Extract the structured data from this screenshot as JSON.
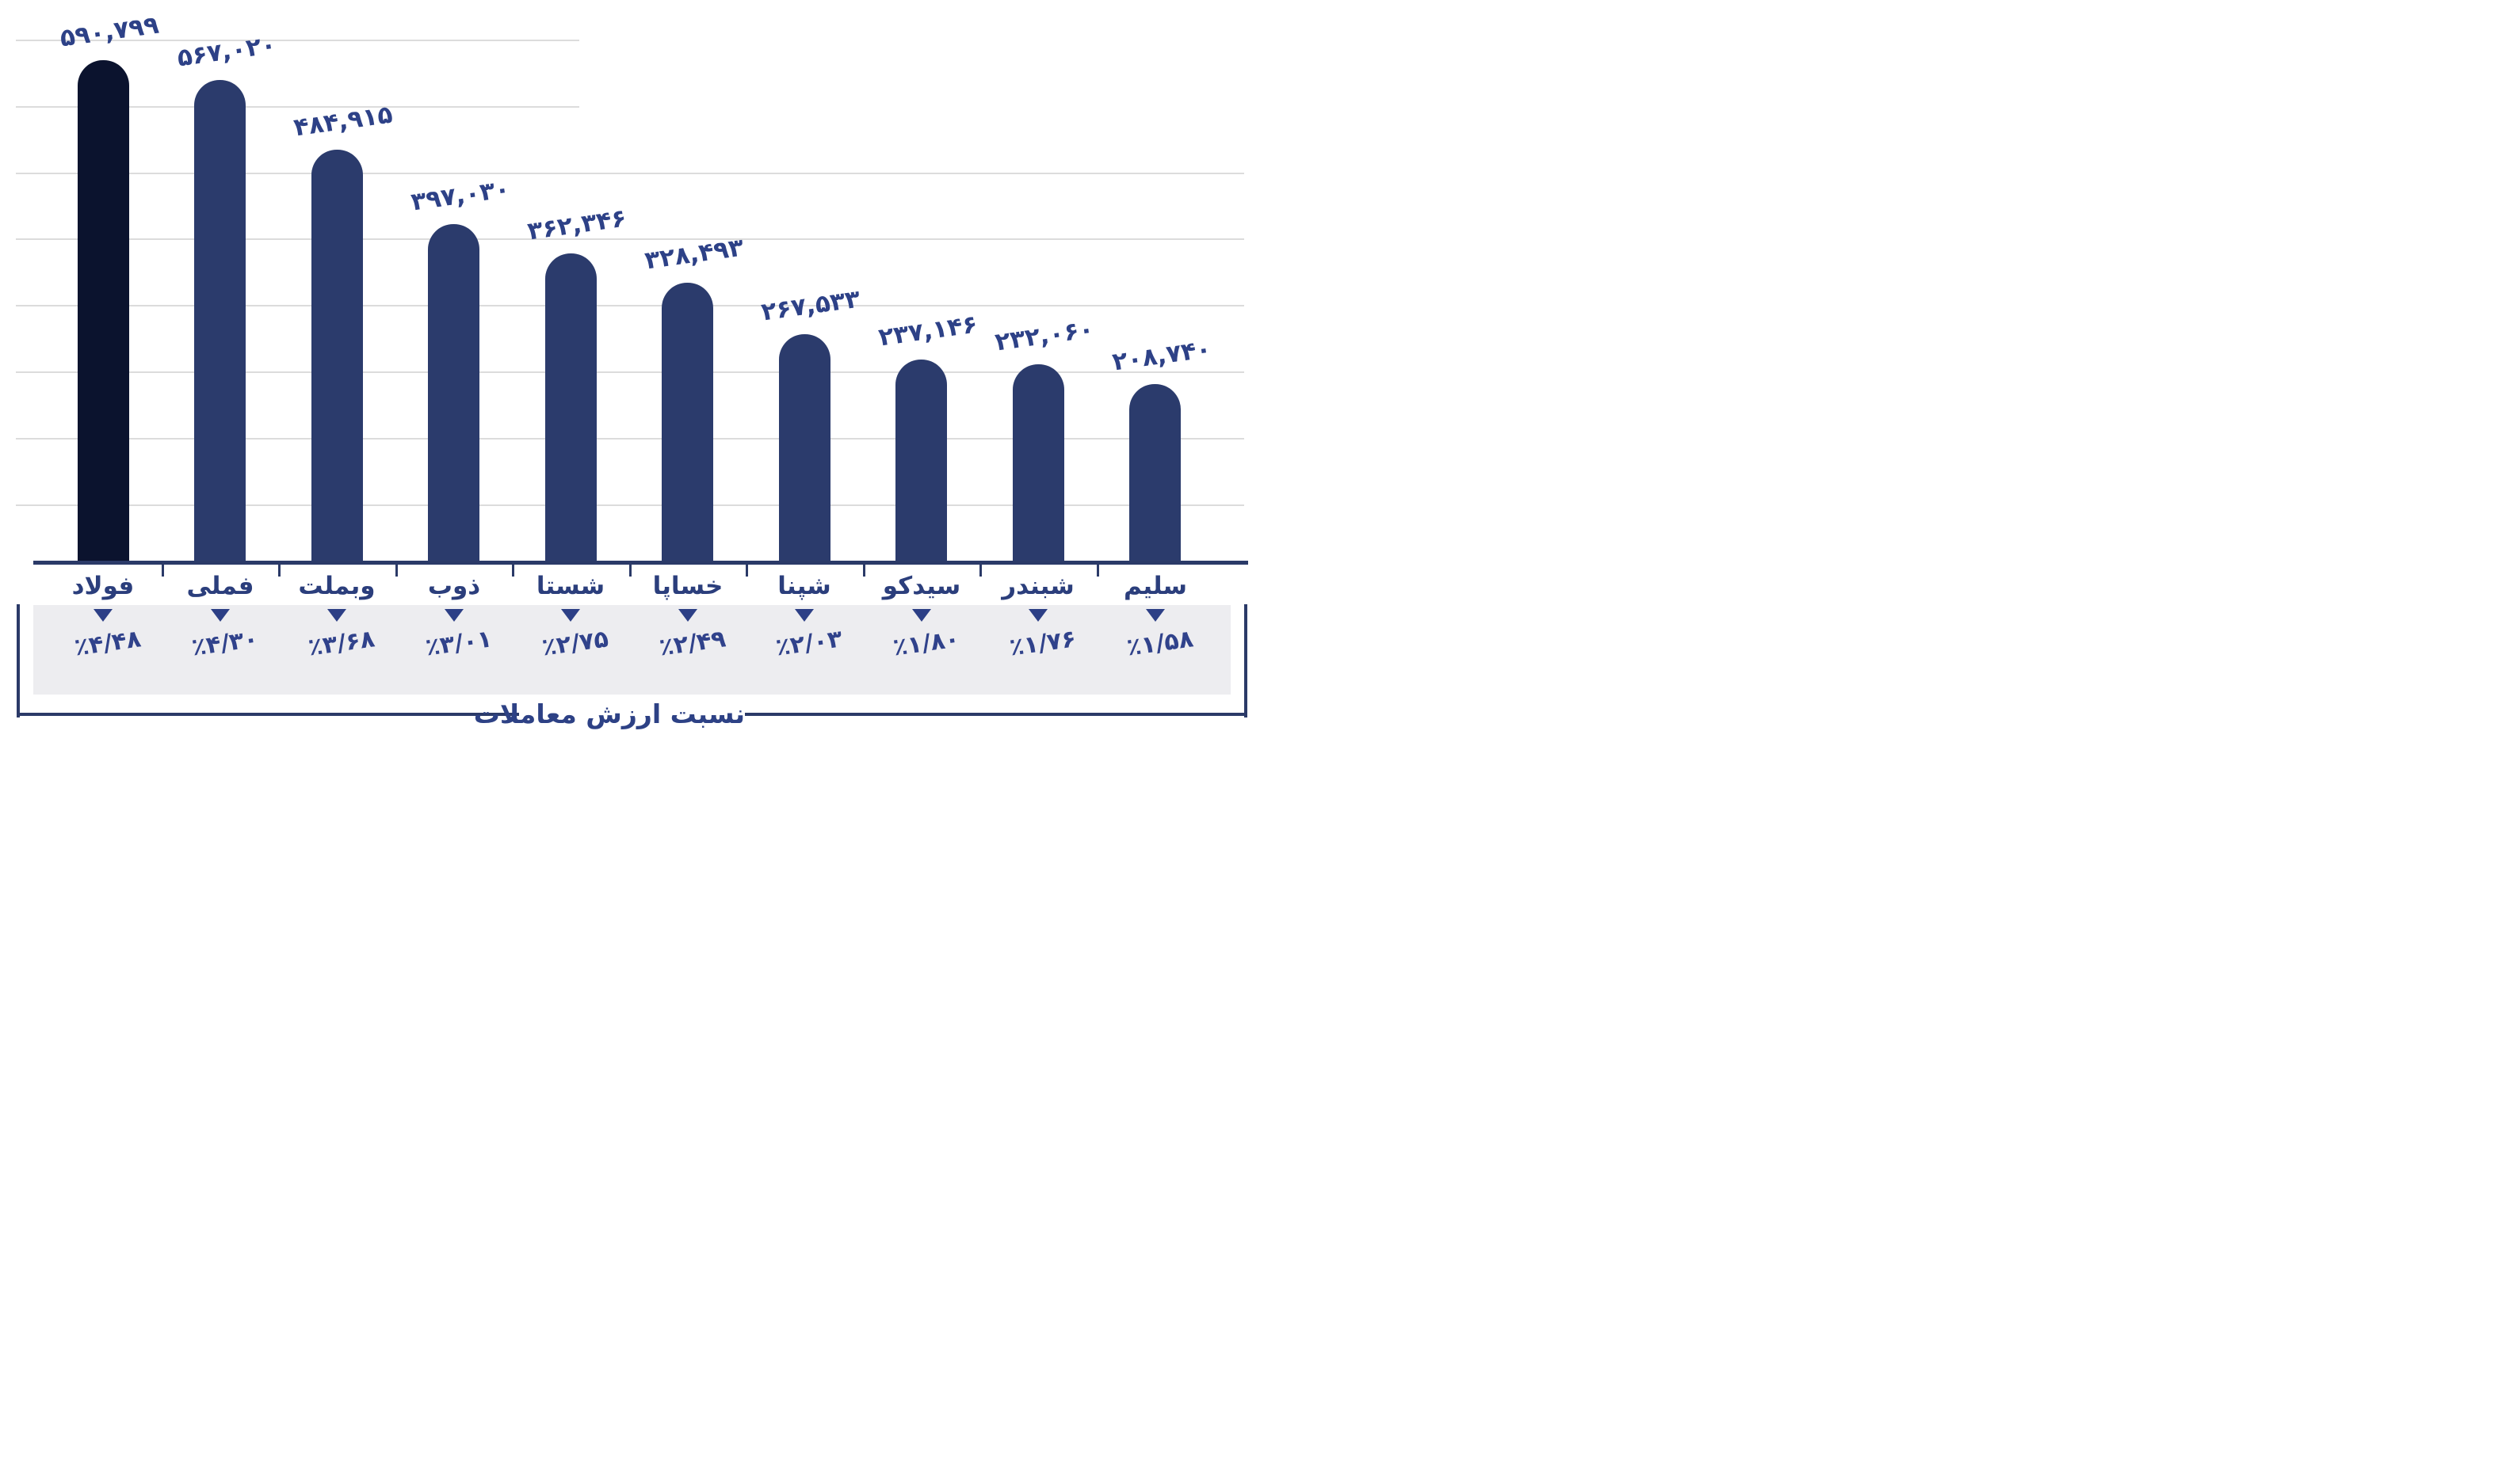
{
  "chart_data": {
    "type": "bar",
    "title": "نسبت ارزش معاملات",
    "categories": [
      "فولاد",
      "فملی",
      "وبملت",
      "ذوب",
      "شستا",
      "خساپا",
      "شپنا",
      "سیدکو",
      "شبندر",
      "سلیم"
    ],
    "values": [
      590799,
      567020,
      484915,
      397030,
      362346,
      328493,
      267533,
      237146,
      232060,
      208740
    ],
    "value_labels": [
      "۵۹۰,۷۹۹",
      "۵۶۷,۰۲۰",
      "۴۸۴,۹۱۵",
      "۳۹۷,۰۳۰",
      "۳۶۲,۳۴۶",
      "۳۲۸,۴۹۳",
      "۲۶۷,۵۳۳",
      "۲۳۷,۱۴۶",
      "۲۳۲,۰۶۰",
      "۲۰۸,۷۴۰"
    ],
    "ratio_percent": [
      4.48,
      4.3,
      3.68,
      3.01,
      2.75,
      2.49,
      2.03,
      1.8,
      1.76,
      1.58
    ],
    "ratio_labels": [
      "٪۴/۴۸",
      "٪۴/۳۰",
      "٪۳/۶۸",
      "٪۳/۰۱",
      "٪۲/۷۵",
      "٪۲/۴۹",
      "٪۲/۰۳",
      "٪۱/۸۰",
      "٪۱/۷۶",
      "٪۱/۵۸"
    ],
    "ratio_axis_label": "نسبت ارزش معاملات",
    "ylim": [
      0,
      620000
    ],
    "grid": true,
    "y_axis_labels_visible": false,
    "legend": "none",
    "marker_icon": "triangle-down"
  },
  "colors": {
    "bar_first": "#0b132e",
    "bar_rest": "#2b3b6c",
    "value_text": "#2d4187",
    "category_text": "#2b3e7c",
    "ratio_text": "#30428b",
    "axis": "#2b3a68",
    "grid_line": "#dcdcdc",
    "panel_bg": "#ededf0",
    "background": "#ffffff"
  }
}
